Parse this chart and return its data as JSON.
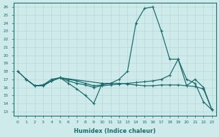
{
  "bg_color": "#ceeaea",
  "line_color": "#1a6b6b",
  "grid_color": "#b8d8d8",
  "xlabel": "Humidex (Indice chaleur)",
  "xlim": [
    -0.5,
    23.5
  ],
  "ylim": [
    12.5,
    26.5
  ],
  "xticks": [
    0,
    1,
    2,
    3,
    4,
    5,
    6,
    7,
    8,
    9,
    10,
    11,
    12,
    13,
    14,
    15,
    16,
    17,
    18,
    19,
    20,
    21,
    22,
    23
  ],
  "yticks": [
    13,
    14,
    15,
    16,
    17,
    18,
    19,
    20,
    21,
    22,
    23,
    24,
    25,
    26
  ],
  "line1_x": [
    0,
    1,
    2,
    3,
    4,
    5,
    6,
    7,
    8,
    9,
    10,
    11,
    12,
    13,
    14,
    15,
    16,
    17,
    18,
    19,
    20,
    21,
    22,
    23
  ],
  "line1_y": [
    18,
    17,
    16.2,
    16.2,
    16.8,
    17.2,
    17.0,
    16.8,
    16.5,
    16.2,
    16.3,
    16.5,
    17.0,
    18.0,
    24.0,
    25.8,
    26.0,
    23.0,
    19.5,
    19.5,
    17.0,
    16.5,
    14.2,
    13.2
  ],
  "line2_x": [
    0,
    1,
    2,
    3,
    4,
    5,
    6,
    7,
    8,
    9,
    10,
    11,
    12,
    13,
    14,
    15,
    16,
    17,
    18,
    19,
    20,
    21,
    22,
    23
  ],
  "line2_y": [
    18,
    17,
    16.2,
    16.2,
    16.8,
    17.2,
    16.8,
    16.5,
    16.3,
    16.0,
    16.2,
    16.3,
    16.4,
    16.5,
    16.6,
    16.7,
    16.8,
    17.0,
    17.5,
    19.5,
    16.2,
    17.0,
    16.0,
    13.2
  ],
  "line3_x": [
    1,
    2,
    3,
    4,
    5,
    10,
    11,
    12,
    13,
    14,
    15,
    16,
    17,
    18,
    19,
    20,
    21,
    22,
    23
  ],
  "line3_y": [
    17.0,
    16.2,
    16.3,
    17.0,
    17.2,
    16.5,
    16.5,
    16.5,
    16.4,
    16.3,
    16.2,
    16.2,
    16.3,
    16.3,
    16.3,
    16.2,
    16.1,
    15.8,
    13.2
  ],
  "line4_x": [
    1,
    2,
    3,
    4,
    5,
    6,
    7,
    8,
    9,
    10
  ],
  "line4_y": [
    17.0,
    16.2,
    16.3,
    16.8,
    17.2,
    16.5,
    15.8,
    15.0,
    14.0,
    16.5
  ]
}
